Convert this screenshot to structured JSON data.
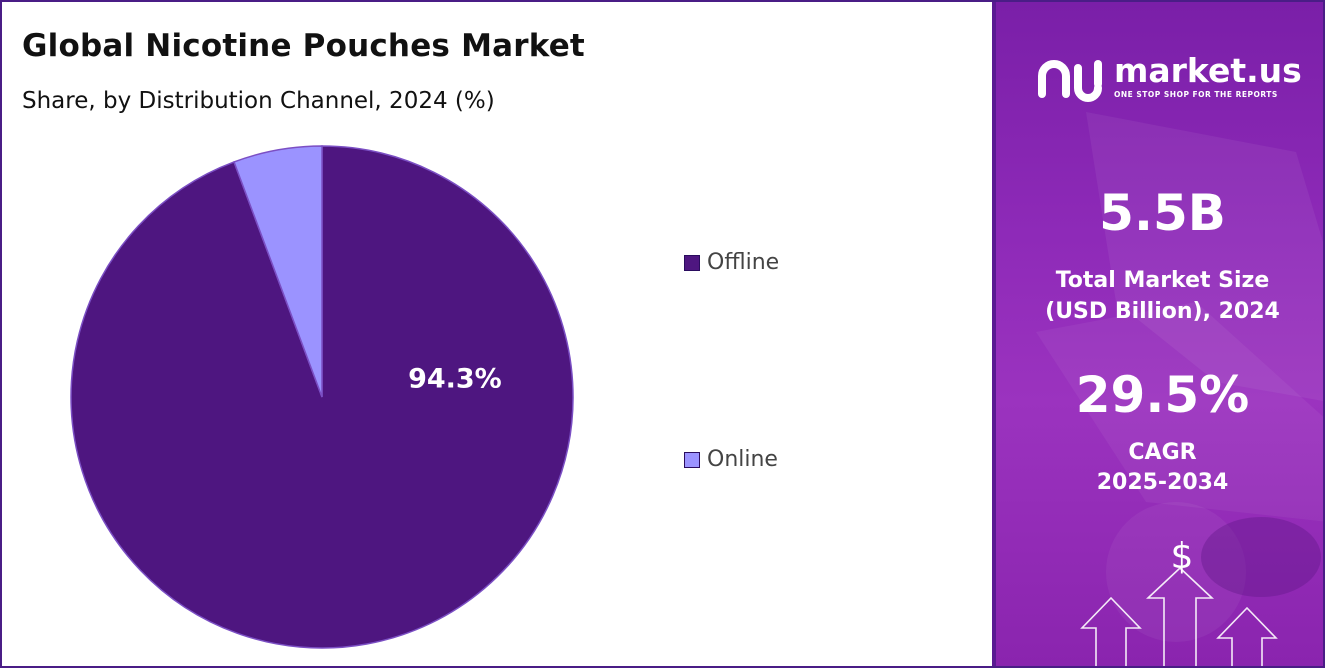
{
  "header": {
    "title": "Global Nicotine Pouches Market",
    "subtitle": "Share, by Distribution Channel, 2024 (%)"
  },
  "chart_data": {
    "type": "pie",
    "title": "Global Nicotine Pouches Market",
    "subtitle": "Share, by Distribution Channel, 2024 (%)",
    "categories": [
      "Offline",
      "Online"
    ],
    "values": [
      94.3,
      5.7
    ],
    "data_labels": [
      "94.3%",
      ""
    ],
    "colors": [
      "#4e1680",
      "#9b93ff"
    ],
    "legend_position": "right"
  },
  "legend": {
    "items": [
      {
        "label": "Offline",
        "color": "#4e1680"
      },
      {
        "label": "Online",
        "color": "#9b93ff"
      }
    ]
  },
  "side_panel": {
    "brand_name": "market.us",
    "brand_tagline": "ONE STOP SHOP FOR THE REPORTS",
    "market_size_value": "5.5B",
    "market_size_label_1": "Total Market Size",
    "market_size_label_2": "(USD Billion), 2024",
    "cagr_value": "29.5%",
    "cagr_label_1": "CAGR",
    "cagr_label_2": "2025-2034",
    "currency_symbol": "$"
  }
}
